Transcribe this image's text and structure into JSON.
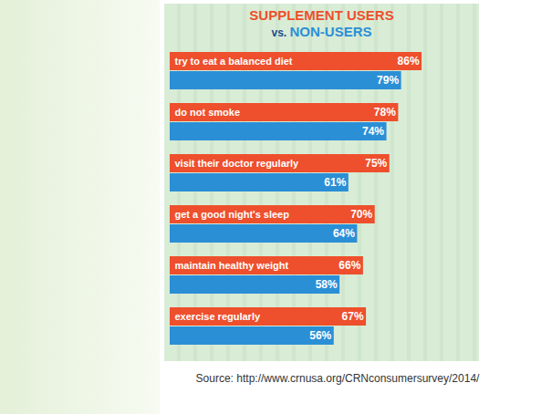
{
  "chart_data": {
    "type": "bar",
    "orientation": "horizontal",
    "title": "SUPPLEMENT USERS vs. NON-USERS",
    "caption": "Source: http://www.crnusa.org/CRNconsumersurvey/2014/",
    "categories": [
      "try to eat a balanced diet",
      "do not smoke",
      "visit their doctor regularly",
      "get a good night's sleep",
      "maintain healthy weight",
      "exercise regularly"
    ],
    "series": [
      {
        "name": "SUPPLEMENT USERS",
        "color": "#ee4f2c",
        "values": [
          86,
          78,
          75,
          70,
          66,
          67
        ],
        "value_labels": [
          "86%",
          "78%",
          "75%",
          "70%",
          "66%",
          "67%"
        ]
      },
      {
        "name": "NON-USERS",
        "color": "#2b8fd6",
        "values": [
          79,
          74,
          61,
          64,
          58,
          56
        ],
        "value_labels": [
          "79%",
          "74%",
          "61%",
          "64%",
          "58%",
          "56%"
        ]
      }
    ],
    "xlim": [
      0,
      100
    ],
    "data_labels": true,
    "tick_labels": false,
    "grid": false
  }
}
